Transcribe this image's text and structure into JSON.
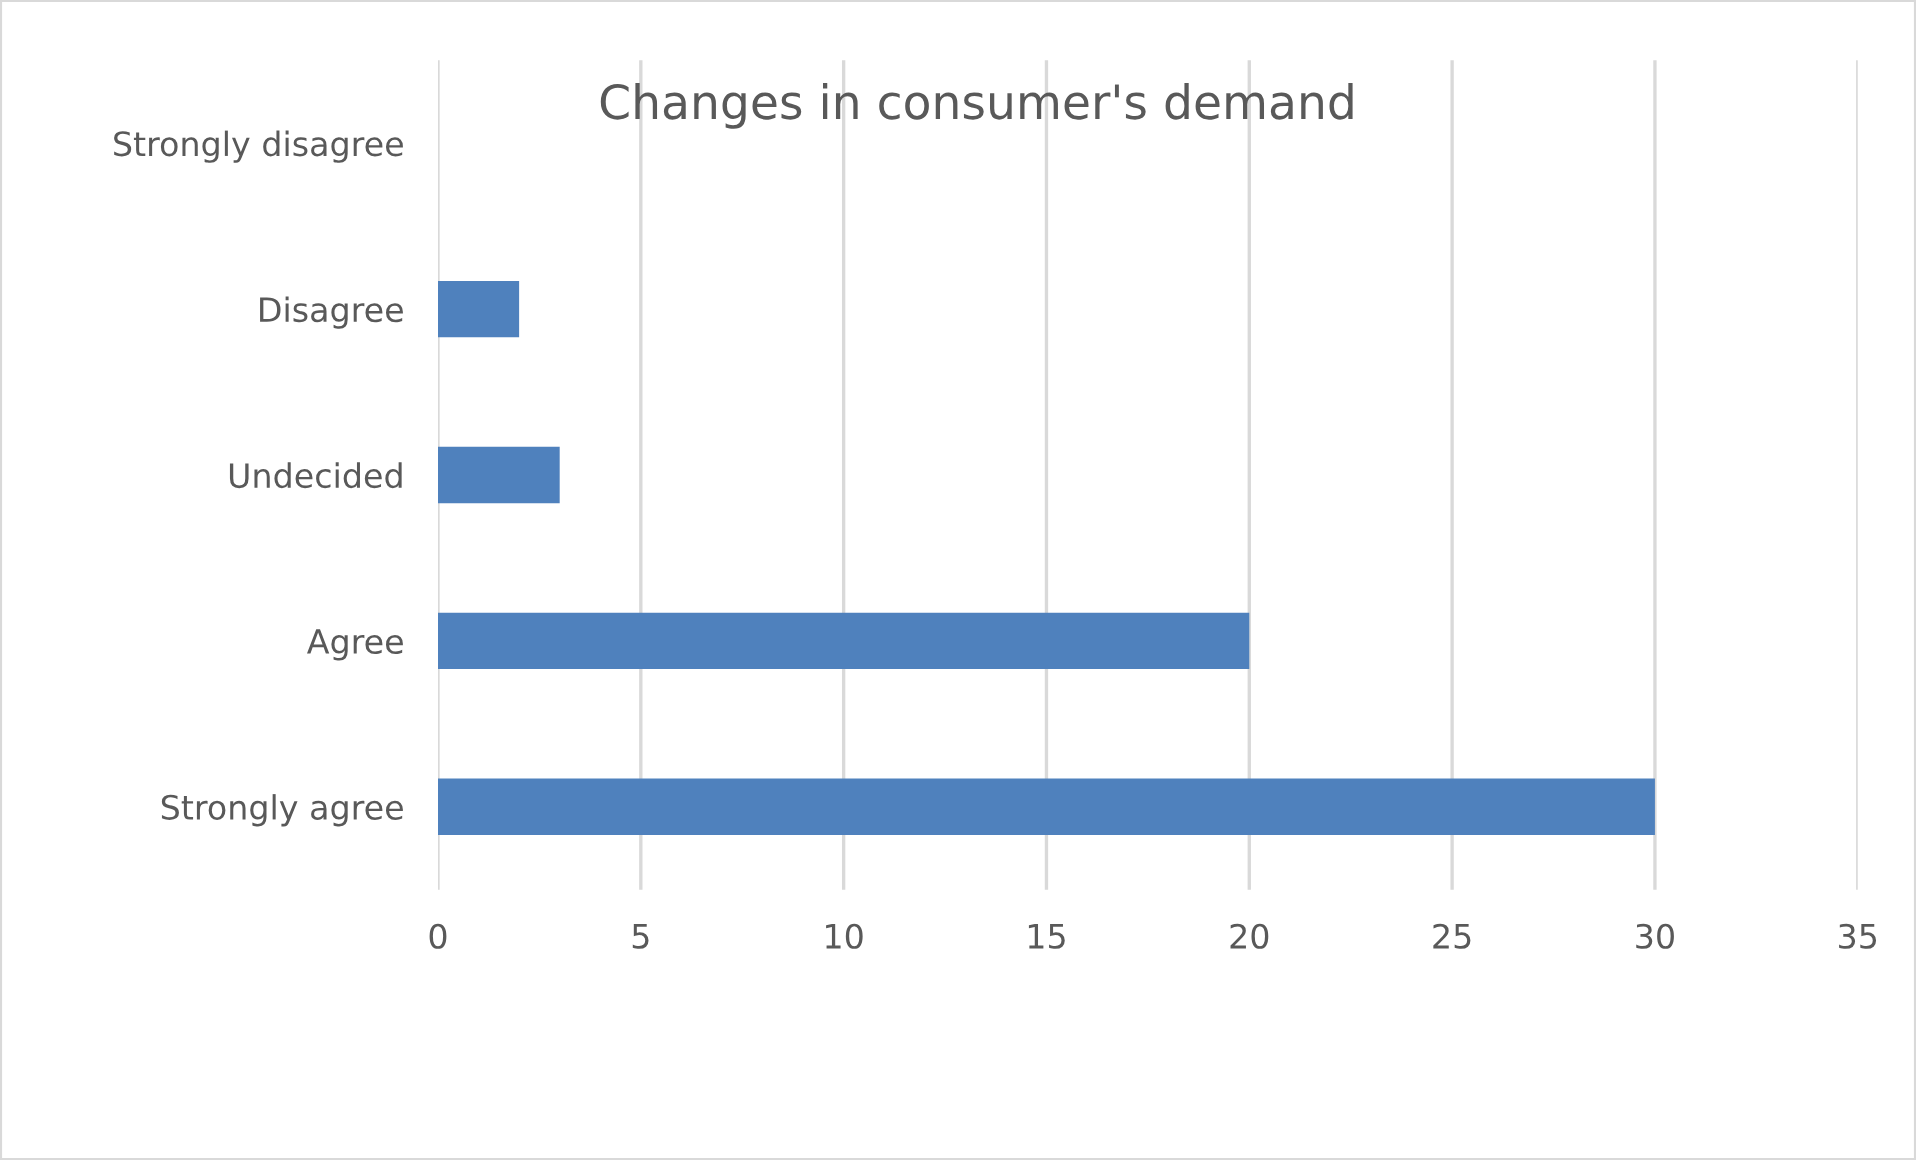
{
  "chart_data": {
    "type": "bar",
    "orientation": "horizontal",
    "title": "Changes in consumer's demand",
    "categories": [
      "Strongly disagree",
      "Disagree",
      "Undecided",
      "Agree",
      "Strongly agree"
    ],
    "values": [
      0,
      2,
      3,
      20,
      30
    ],
    "color": "#4f81bd",
    "xlim": [
      0,
      35
    ],
    "xticks": [
      0,
      5,
      10,
      15,
      20,
      25,
      30,
      35
    ],
    "grid": "x"
  }
}
